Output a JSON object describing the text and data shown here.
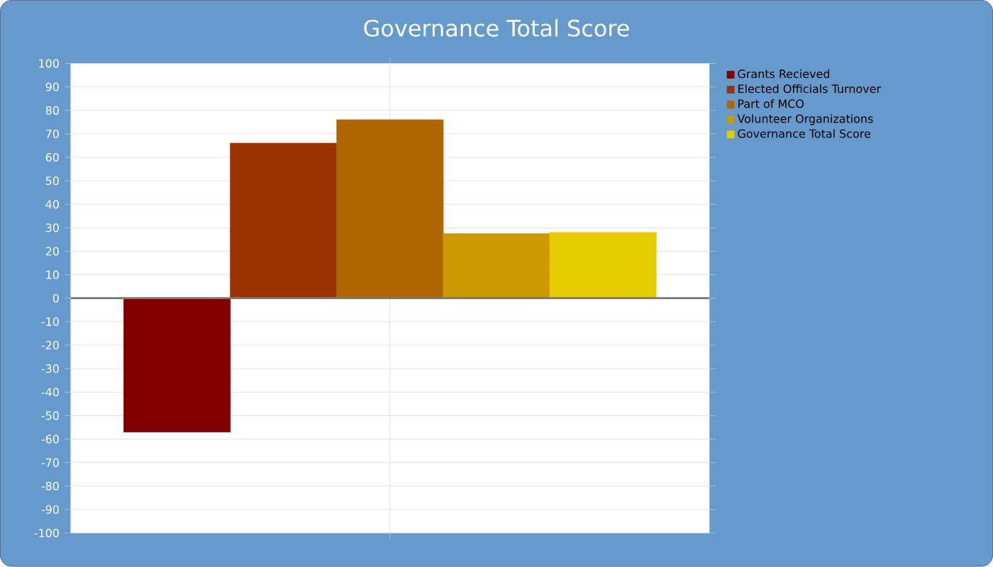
{
  "chart_data": {
    "type": "bar",
    "title": "Governance Total Score",
    "categories": [
      null
    ],
    "series": [
      {
        "name": "Grants Recieved",
        "color": "#800000",
        "values": [
          -57
        ]
      },
      {
        "name": "Elected Officials Turnover",
        "color": "#993300",
        "values": [
          66
        ]
      },
      {
        "name": "Part of MCO",
        "color": "#b06600",
        "values": [
          76
        ]
      },
      {
        "name": "Volunteer Organizations",
        "color": "#cc9900",
        "values": [
          27.5
        ]
      },
      {
        "name": "Governance Total Score",
        "color": "#e5cc00",
        "values": [
          28
        ]
      }
    ],
    "ylim": [
      -100,
      100
    ],
    "yticks": [
      -100,
      -90,
      -80,
      -70,
      -60,
      -50,
      -40,
      -30,
      -20,
      -10,
      0,
      10,
      20,
      30,
      40,
      50,
      60,
      70,
      80,
      90,
      100
    ],
    "grid": true,
    "legend": "right",
    "tick_labels": "y"
  }
}
